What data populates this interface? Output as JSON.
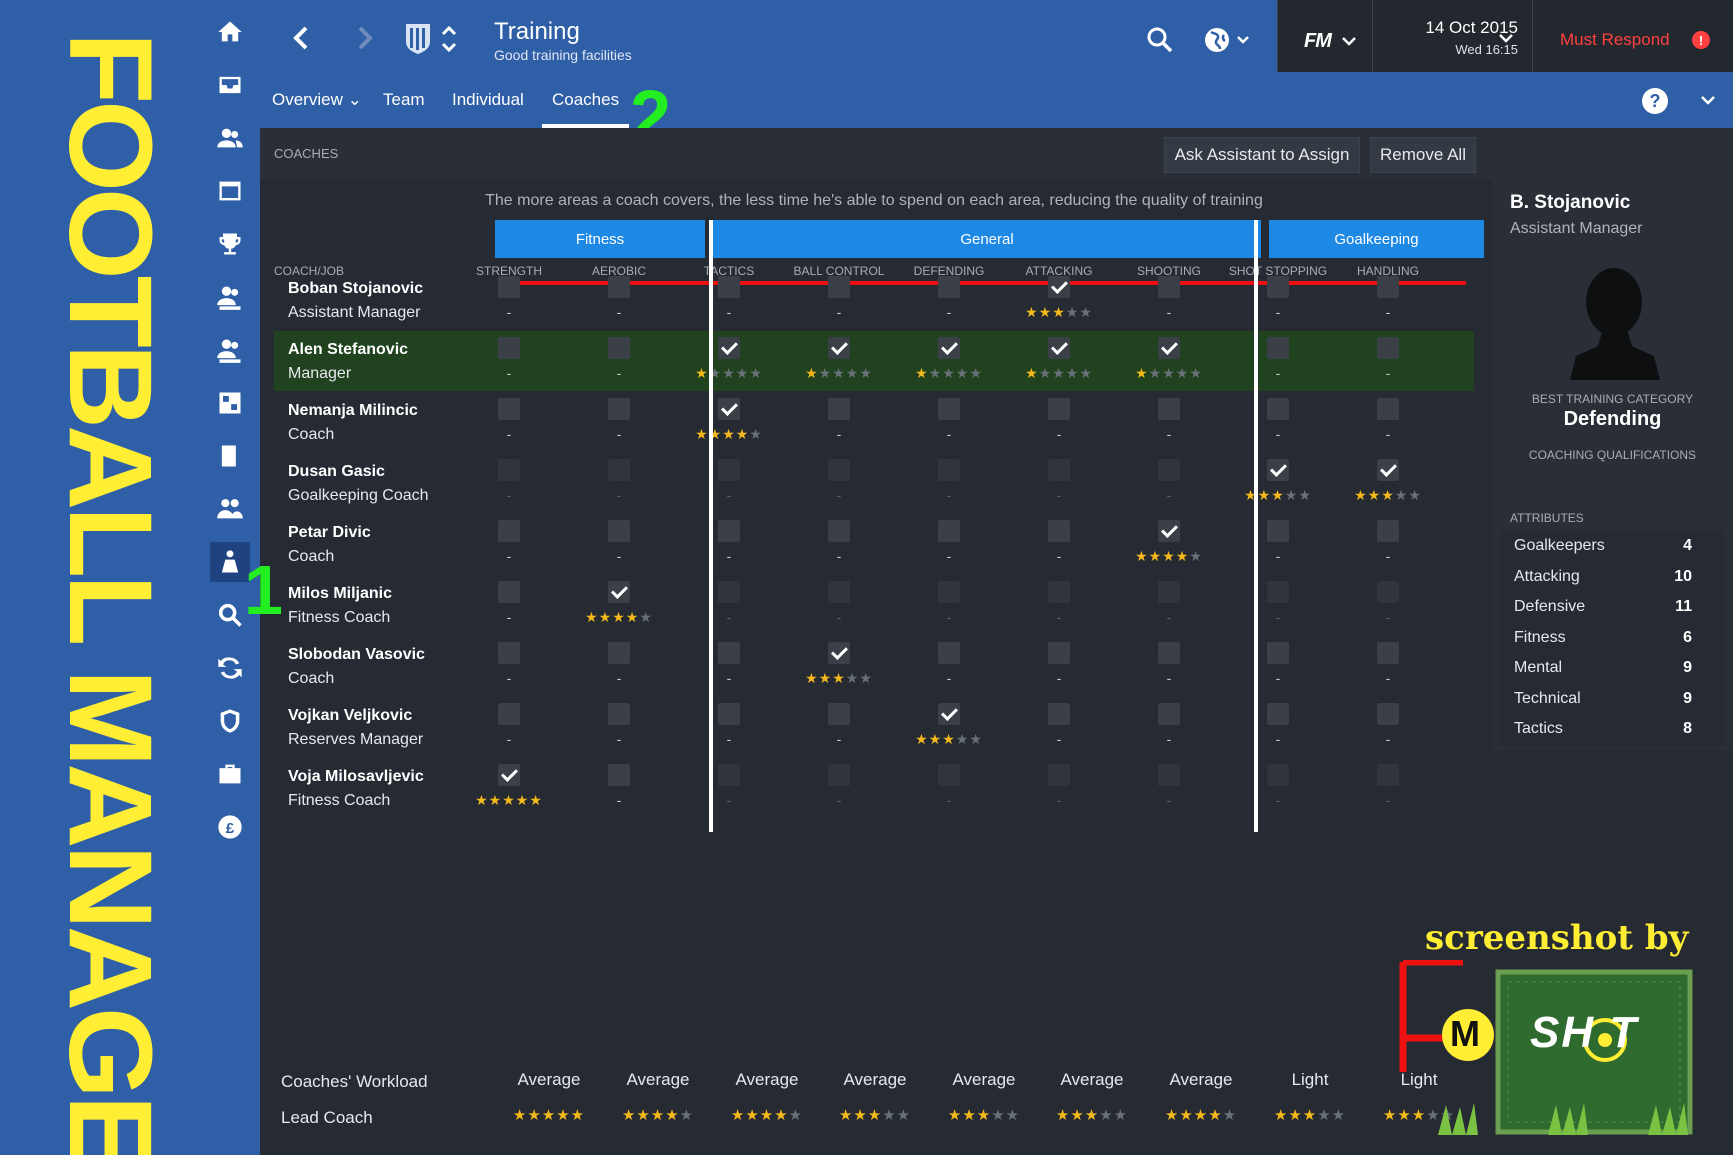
{
  "banner": {
    "text": "FOOTBALL MANAGER"
  },
  "markers": {
    "one": "1",
    "two": "2"
  },
  "header": {
    "title": "Training",
    "subtitle": "Good training facilities",
    "fm_logo": "FM",
    "date": "14 Oct 2015",
    "time": "Wed 16:15",
    "must_respond": "Must Respond",
    "alert": "!",
    "help": "?"
  },
  "tabs": [
    {
      "label": "Overview ⌄"
    },
    {
      "label": "Team"
    },
    {
      "label": "Individual"
    },
    {
      "label": "Coaches"
    }
  ],
  "section": {
    "label": "COACHES",
    "ask_assistant": "Ask Assistant to Assign",
    "remove_all": "Remove All"
  },
  "grid": {
    "note": "The more areas a coach covers, the less time he's able to spend on each area, reducing the quality of training",
    "coach_job_header": "COACH/JOB",
    "groups": [
      {
        "label": "Fitness"
      },
      {
        "label": "General"
      },
      {
        "label": "Goalkeeping"
      }
    ],
    "columns": [
      "STRENGTH",
      "AEROBIC",
      "TACTICS",
      "BALL CONTROL",
      "DEFENDING",
      "ATTACKING",
      "SHOOTING",
      "SHOT STOPPING",
      "HANDLING"
    ]
  },
  "coaches": [
    {
      "name": "Boban Stojanovic",
      "role": "Assistant Manager",
      "highlight": false,
      "cells": [
        null,
        null,
        null,
        null,
        null,
        2.5,
        null,
        null,
        null
      ]
    },
    {
      "name": "Alen Stefanovic",
      "role": "Manager",
      "highlight": true,
      "cells": [
        null,
        null,
        1,
        1,
        1,
        1,
        1,
        null,
        null
      ]
    },
    {
      "name": "Nemanja Milincic",
      "role": "Coach",
      "highlight": false,
      "cells": [
        null,
        null,
        3.5,
        null,
        null,
        null,
        null,
        null,
        null
      ]
    },
    {
      "name": "Dusan Gasic",
      "role": "Goalkeeping Coach",
      "highlight": false,
      "dim_outfield": true,
      "cells": [
        null,
        null,
        null,
        null,
        null,
        null,
        null,
        3,
        2.5
      ]
    },
    {
      "name": "Petar Divic",
      "role": "Coach",
      "highlight": false,
      "cells": [
        null,
        null,
        null,
        null,
        null,
        null,
        3.5,
        null,
        null
      ]
    },
    {
      "name": "Milos Miljanic",
      "role": "Fitness Coach",
      "highlight": false,
      "dim_nonfitness": true,
      "cells": [
        null,
        4,
        null,
        null,
        null,
        null,
        null,
        null,
        null
      ]
    },
    {
      "name": "Slobodan Vasovic",
      "role": "Coach",
      "highlight": false,
      "cells": [
        null,
        null,
        null,
        3,
        null,
        null,
        null,
        null,
        null
      ]
    },
    {
      "name": "Vojkan Veljkovic",
      "role": "Reserves Manager",
      "highlight": false,
      "cells": [
        null,
        null,
        null,
        null,
        2.5,
        null,
        null,
        null,
        null
      ]
    },
    {
      "name": "Voja Milosavljevic",
      "role": "Fitness Coach",
      "highlight": false,
      "dim_nonfitness": true,
      "cells": [
        4.5,
        null,
        null,
        null,
        null,
        null,
        null,
        null,
        null
      ]
    }
  ],
  "workload": {
    "label": "Coaches' Workload",
    "values": [
      "Average",
      "Average",
      "Average",
      "Average",
      "Average",
      "Average",
      "Average",
      "Light",
      "Light"
    ]
  },
  "lead_coach": {
    "label": "Lead Coach",
    "ratings": [
      4.5,
      4,
      3.5,
      3,
      2.5,
      2.5,
      3.5,
      3,
      2.5
    ]
  },
  "profile": {
    "name": "B. Stojanovic",
    "role": "Assistant Manager",
    "best_category_label": "BEST TRAINING CATEGORY",
    "best_category": "Defending",
    "qualifications_label": "COACHING QUALIFICATIONS",
    "attributes_label": "ATTRIBUTES",
    "attributes": [
      {
        "name": "Goalkeepers",
        "value": "4"
      },
      {
        "name": "Attacking",
        "value": "10"
      },
      {
        "name": "Defensive",
        "value": "11"
      },
      {
        "name": "Fitness",
        "value": "6"
      },
      {
        "name": "Mental",
        "value": "9"
      },
      {
        "name": "Technical",
        "value": "9"
      },
      {
        "name": "Tactics",
        "value": "8"
      }
    ]
  },
  "watermark": {
    "text": "screenshot by",
    "logo_left": "M",
    "logo_right": "SH T"
  },
  "colors": {
    "accent": "#2f5fa6",
    "group_bar": "#1e88e5",
    "star": "#f5b91b",
    "alert": "#ff4040",
    "highlight_row": "#20421f",
    "banner_text": "#ffee33"
  }
}
